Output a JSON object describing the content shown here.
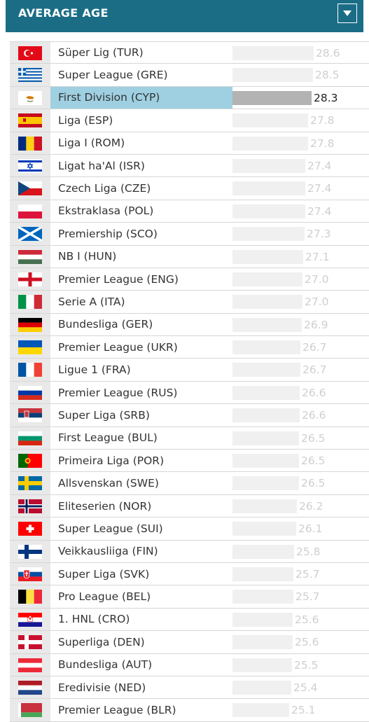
{
  "header": {
    "title": "AVERAGE AGE",
    "dropdown_icon": "chevron-down-icon"
  },
  "colors": {
    "header_bg": "#1b6d86",
    "highlight_bg": "#9fd0e2",
    "bar": "#f0f0f0",
    "bar_highlight": "#b3b3b3",
    "value_text": "#cfcfcf",
    "value_text_highlight": "#222222"
  },
  "chart_data": {
    "type": "bar",
    "orientation": "horizontal",
    "title": "AVERAGE AGE",
    "xlim": [
      0,
      28.6
    ],
    "highlighted": "First Division (CYP)",
    "categories": [
      "Süper Lig (TUR)",
      "Super League (GRE)",
      "First Division (CYP)",
      "Liga (ESP)",
      "Liga I (ROM)",
      "Ligat ha'Al (ISR)",
      "Czech Liga (CZE)",
      "Ekstraklasa (POL)",
      "Premiership (SCO)",
      "NB I (HUN)",
      "Premier League (ENG)",
      "Serie A (ITA)",
      "Bundesliga (GER)",
      "Premier League (UKR)",
      "Ligue 1 (FRA)",
      "Premier League (RUS)",
      "Super Liga (SRB)",
      "First League (BUL)",
      "Primeira Liga (POR)",
      "Allsvenskan (SWE)",
      "Eliteserien (NOR)",
      "Super League (SUI)",
      "Veikkausliiga (FIN)",
      "Super Liga (SVK)",
      "Pro League (BEL)",
      "1. HNL (CRO)",
      "Superliga (DEN)",
      "Bundesliga (AUT)",
      "Eredivisie (NED)",
      "Premier League (BLR)"
    ],
    "values": [
      28.6,
      28.5,
      28.3,
      27.8,
      27.8,
      27.4,
      27.4,
      27.4,
      27.3,
      27.1,
      27.0,
      27.0,
      26.9,
      26.7,
      26.7,
      26.6,
      26.6,
      26.5,
      26.5,
      26.5,
      26.2,
      26.1,
      25.8,
      25.7,
      25.7,
      25.6,
      25.6,
      25.5,
      25.4,
      25.1
    ],
    "value_labels": [
      "28.6",
      "28.5",
      "28.3",
      "27.8",
      "27.8",
      "27.4",
      "27.4",
      "27.4",
      "27.3",
      "27.1",
      "27.0",
      "27.0",
      "26.9",
      "26.7",
      "26.7",
      "26.6",
      "26.6",
      "26.5",
      "26.5",
      "26.5",
      "26.2",
      "26.1",
      "25.8",
      "25.7",
      "25.7",
      "25.6",
      "25.6",
      "25.5",
      "25.4",
      "25.1"
    ],
    "flags": [
      "TUR",
      "GRE",
      "CYP",
      "ESP",
      "ROM",
      "ISR",
      "CZE",
      "POL",
      "SCO",
      "HUN",
      "ENG",
      "ITA",
      "GER",
      "UKR",
      "FRA",
      "RUS",
      "SRB",
      "BUL",
      "POR",
      "SWE",
      "NOR",
      "SUI",
      "FIN",
      "SVK",
      "BEL",
      "CRO",
      "DEN",
      "AUT",
      "NED",
      "BLR"
    ]
  }
}
